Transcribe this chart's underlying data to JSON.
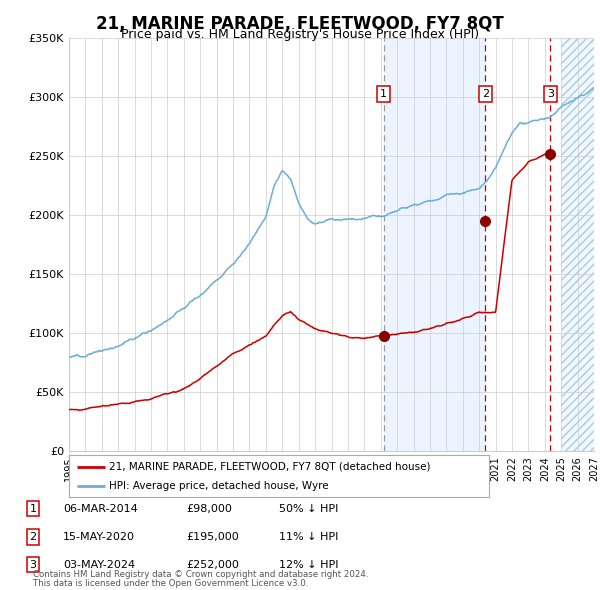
{
  "title": "21, MARINE PARADE, FLEETWOOD, FY7 8QT",
  "subtitle": "Price paid vs. HM Land Registry's House Price Index (HPI)",
  "title_fontsize": 12,
  "subtitle_fontsize": 9,
  "hpi_color": "#6baed6",
  "price_color": "#cc0000",
  "marker_color": "#8b0000",
  "sale1_date_x": 2014.17,
  "sale1_price": 98000,
  "sale2_date_x": 2020.37,
  "sale2_price": 195000,
  "sale3_date_x": 2024.33,
  "sale3_price": 252000,
  "xmin": 1995,
  "xmax": 2027,
  "ymin": 0,
  "ymax": 350000,
  "yticks": [
    0,
    50000,
    100000,
    150000,
    200000,
    250000,
    300000,
    350000
  ],
  "ytick_labels": [
    "£0",
    "£50K",
    "£100K",
    "£150K",
    "£200K",
    "£250K",
    "£300K",
    "£350K"
  ],
  "footer1": "Contains HM Land Registry data © Crown copyright and database right 2024.",
  "footer2": "This data is licensed under the Open Government Licence v3.0.",
  "legend1": "21, MARINE PARADE, FLEETWOOD, FY7 8QT (detached house)",
  "legend2": "HPI: Average price, detached house, Wyre",
  "table": [
    {
      "num": "1",
      "date": "06-MAR-2014",
      "price": "£98,000",
      "pct": "50% ↓ HPI"
    },
    {
      "num": "2",
      "date": "15-MAY-2020",
      "price": "£195,000",
      "pct": "11% ↓ HPI"
    },
    {
      "num": "3",
      "date": "03-MAY-2024",
      "price": "£252,000",
      "pct": "12% ↓ HPI"
    }
  ],
  "bg_color": "#ffffff",
  "grid_color": "#cccccc",
  "shade_start": 2014.17,
  "shade_end": 2020.37,
  "hatch_start": 2025.0,
  "hpi_knots_x": [
    1995,
    1996,
    1997,
    1998,
    1999,
    2000,
    2001,
    2002,
    2003,
    2004,
    2005,
    2006,
    2007,
    2007.5,
    2008,
    2008.5,
    2009,
    2009.5,
    2010,
    2011,
    2012,
    2013,
    2014,
    2015,
    2016,
    2017,
    2018,
    2019,
    2020,
    2020.5,
    2021,
    2021.5,
    2022,
    2022.5,
    2023,
    2023.5,
    2024,
    2024.5,
    2025,
    2026,
    2027
  ],
  "hpi_knots_y": [
    80000,
    82000,
    85000,
    90000,
    96000,
    103000,
    112000,
    122000,
    133000,
    145000,
    158000,
    175000,
    200000,
    225000,
    237000,
    232000,
    210000,
    198000,
    193000,
    196000,
    196000,
    198000,
    200000,
    204000,
    208000,
    212000,
    216000,
    220000,
    222000,
    228000,
    240000,
    255000,
    270000,
    278000,
    278000,
    280000,
    282000,
    285000,
    292000,
    300000,
    308000
  ],
  "price_knots_x": [
    1995,
    1996,
    1997,
    1998,
    1999,
    2000,
    2001,
    2002,
    2003,
    2004,
    2005,
    2006,
    2007,
    2007.5,
    2008,
    2008.5,
    2009,
    2010,
    2011,
    2012,
    2013,
    2014,
    2015,
    2016,
    2017,
    2018,
    2019,
    2019.5,
    2020,
    2020.4,
    2021,
    2022,
    2023,
    2023.5,
    2024,
    2024.5
  ],
  "price_knots_y": [
    35000,
    36000,
    38000,
    40000,
    42000,
    45000,
    49000,
    53000,
    62000,
    72000,
    83000,
    90000,
    98000,
    107000,
    115000,
    118000,
    112000,
    104000,
    100000,
    97000,
    96000,
    98000,
    100000,
    101000,
    104000,
    108000,
    112000,
    115000,
    118000,
    118000,
    118000,
    230000,
    245000,
    248000,
    252000,
    250000
  ]
}
